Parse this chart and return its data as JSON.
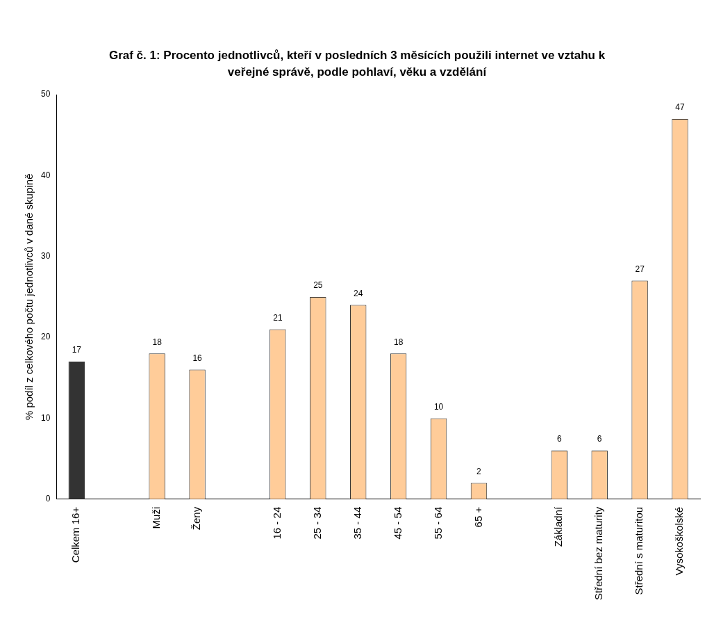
{
  "chart_data": {
    "type": "bar",
    "title": "Graf č. 1: Procento jednotlivců, kteří v posledních 3 měsících použili internet ve vztahu k veřejné správě,  podle pohlaví, věku a vzdělání",
    "ylabel": "% podíl z celkového počtu jednotlivců v dané skupině",
    "categories": [
      "Celkem 16+",
      null,
      "Muži",
      "Ženy",
      null,
      "16 - 24",
      "25 - 34",
      "35 - 44",
      "45 - 54",
      "55 - 64",
      "65 +",
      null,
      "Základní",
      "Střední bez maturity",
      "Střední s maturitou",
      "Vysokoškolské"
    ],
    "values": [
      17,
      null,
      18,
      16,
      null,
      21,
      25,
      24,
      18,
      10,
      2,
      null,
      6,
      6,
      27,
      47
    ],
    "colors": [
      "#333333",
      "#ffcc99",
      "#ffcc99",
      "#ffcc99",
      "#ffcc99",
      "#ffcc99",
      "#ffcc99",
      "#ffcc99",
      "#ffcc99",
      "#ffcc99",
      "#ffcc99",
      "#ffcc99",
      "#ffcc99",
      "#ffcc99",
      "#ffcc99",
      "#ffcc99"
    ],
    "ylim": [
      0,
      50
    ],
    "yticks": [
      0,
      10,
      20,
      30,
      40,
      50
    ],
    "grid": false,
    "legend": false,
    "data_labels": true
  }
}
